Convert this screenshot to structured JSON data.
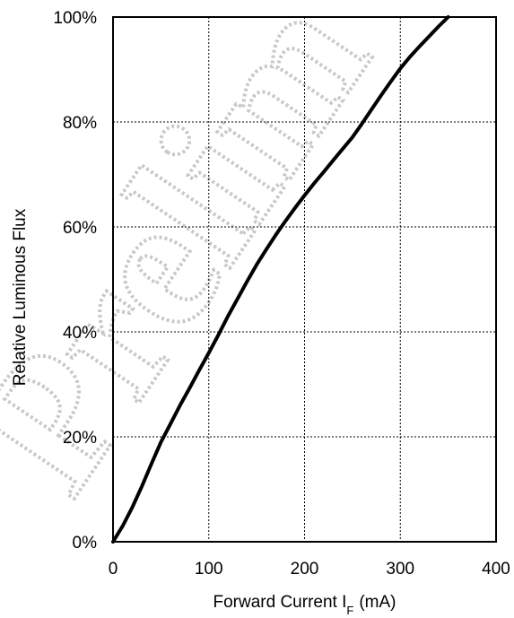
{
  "chart_data": {
    "type": "line",
    "title": "",
    "xlabel": "Forward Current I",
    "xlabel_subscript": "F",
    "xlabel_unit": "(mA)",
    "ylabel": "Relative Luminous Flux",
    "xlim": [
      0,
      400
    ],
    "ylim": [
      0,
      100
    ],
    "x_ticks": [
      0,
      100,
      200,
      300,
      400
    ],
    "x_tick_labels": [
      "0",
      "100",
      "200",
      "300",
      "400"
    ],
    "y_ticks": [
      0,
      20,
      40,
      60,
      80,
      100
    ],
    "y_tick_labels": [
      "0%",
      "20%",
      "40%",
      "60%",
      "80%",
      "100%"
    ],
    "grid": true,
    "watermark": "Prelim",
    "colors": {
      "line": "#000000",
      "grid": "#000000",
      "watermark": "#c8c8c8"
    },
    "series": [
      {
        "x": [
          0,
          10,
          20,
          30,
          40,
          50,
          60,
          70,
          80,
          90,
          100,
          110,
          120,
          130,
          140,
          150,
          160,
          170,
          180,
          190,
          200,
          210,
          220,
          230,
          240,
          250,
          260,
          270,
          280,
          290,
          300,
          310,
          320,
          330,
          340,
          350
        ],
        "y": [
          0,
          3,
          6.5,
          10.5,
          14.8,
          19,
          22.5,
          26,
          29.3,
          32.7,
          36,
          39.4,
          43,
          46.3,
          49.6,
          52.8,
          55.7,
          58.5,
          61.1,
          63.6,
          66,
          68.3,
          70.5,
          72.7,
          74.9,
          77.1,
          79.7,
          82.4,
          85.1,
          87.7,
          90.2,
          92.4,
          94.4,
          96.3,
          98.2,
          100
        ]
      }
    ]
  }
}
